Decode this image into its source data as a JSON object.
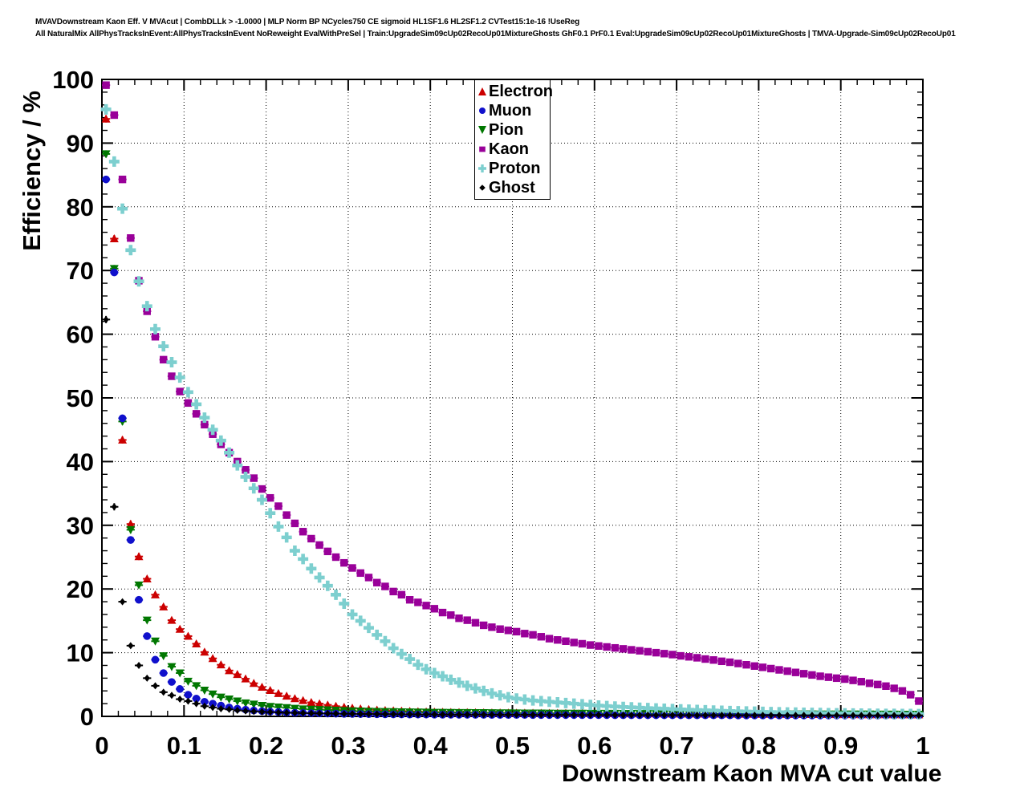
{
  "header": {
    "line1": "MVAVDownstream Kaon Eff. V MVAcut | CombDLLk > -1.0000 | MLP Norm BP NCycles750 CE sigmoid HL1SF1.6 HL2SF1.2 CVTest15:1e-16 !UseReg",
    "line2": "All NaturalMix AllPhysTracksInEvent:AllPhysTracksInEvent NoReweight EvalWithPreSel | Train:UpgradeSim09cUp02RecoUp01MixtureGhosts GhF0.1 PrF0.1 Eval:UpgradeSim09cUp02RecoUp01MixtureGhosts | TMVA-Upgrade-Sim09cUp02RecoUp01"
  },
  "axes": {
    "y_label": "Efficiency / %",
    "x_label": "Downstream Kaon MVA cut value",
    "y_ticks": [
      "0",
      "10",
      "20",
      "30",
      "40",
      "50",
      "60",
      "70",
      "80",
      "90",
      "100"
    ],
    "x_ticks": [
      "0",
      "0.1",
      "0.2",
      "0.3",
      "0.4",
      "0.5",
      "0.6",
      "0.7",
      "0.8",
      "0.9",
      "1"
    ]
  },
  "chart_data": {
    "type": "scatter",
    "title": "",
    "xlabel": "Downstream Kaon MVA cut value",
    "ylabel": "Efficiency / %",
    "xlim": [
      0,
      1
    ],
    "ylim": [
      0,
      100
    ],
    "grid": true,
    "legend_position": "top-right",
    "x_step": 0.01,
    "x_start": 0.005,
    "series": [
      {
        "name": "Electron",
        "marker": "triangle-up",
        "color": "#cc0000",
        "values": [
          93.8,
          75.0,
          43.4,
          30.2,
          25.1,
          21.6,
          19.1,
          17.2,
          15.1,
          13.7,
          12.6,
          11.4,
          10.1,
          9.1,
          8.1,
          7.2,
          6.6,
          5.9,
          5.2,
          4.6,
          4.1,
          3.6,
          3.2,
          2.8,
          2.5,
          2.2,
          2.0,
          1.8,
          1.6,
          1.45,
          1.3,
          1.2,
          1.1,
          1.0,
          0.95,
          0.9,
          0.85,
          0.8,
          0.75,
          0.72,
          0.7,
          0.67,
          0.65,
          0.63,
          0.61,
          0.6,
          0.58,
          0.57,
          0.56,
          0.55,
          0.54,
          0.53,
          0.52,
          0.51,
          0.5,
          0.5,
          0.49,
          0.48,
          0.47,
          0.46,
          0.45,
          0.45,
          0.44,
          0.43,
          0.43,
          0.42,
          0.42,
          0.41,
          0.41,
          0.4,
          0.4,
          0.39,
          0.39,
          0.38,
          0.38,
          0.37,
          0.37,
          0.36,
          0.36,
          0.35,
          0.35,
          0.34,
          0.34,
          0.33,
          0.33,
          0.32,
          0.32,
          0.31,
          0.31,
          0.3,
          0.3,
          0.3,
          0.29,
          0.29,
          0.28,
          0.28,
          0.28,
          0.27,
          0.27,
          0.27
        ]
      },
      {
        "name": "Muon",
        "marker": "circle",
        "color": "#1010cc",
        "values": [
          84.3,
          69.7,
          46.8,
          27.7,
          18.3,
          12.6,
          8.9,
          6.8,
          5.4,
          4.3,
          3.4,
          2.8,
          2.3,
          2.0,
          1.7,
          1.4,
          1.2,
          1.05,
          0.92,
          0.82,
          0.74,
          0.68,
          0.62,
          0.57,
          0.53,
          0.5,
          0.47,
          0.44,
          0.42,
          0.4,
          0.38,
          0.36,
          0.35,
          0.33,
          0.32,
          0.31,
          0.3,
          0.29,
          0.28,
          0.28,
          0.27,
          0.26,
          0.26,
          0.25,
          0.25,
          0.24,
          0.24,
          0.23,
          0.23,
          0.22,
          0.22,
          0.22,
          0.21,
          0.21,
          0.21,
          0.2,
          0.2,
          0.2,
          0.19,
          0.19,
          0.19,
          0.19,
          0.18,
          0.18,
          0.18,
          0.18,
          0.17,
          0.17,
          0.17,
          0.17,
          0.17,
          0.16,
          0.16,
          0.16,
          0.16,
          0.16,
          0.16,
          0.15,
          0.15,
          0.15,
          0.15,
          0.15,
          0.15,
          0.15,
          0.14,
          0.14,
          0.14,
          0.14,
          0.14,
          0.14,
          0.14,
          0.14,
          0.13,
          0.13,
          0.13,
          0.13,
          0.13,
          0.13,
          0.13,
          0.13
        ]
      },
      {
        "name": "Pion",
        "marker": "triangle-down",
        "color": "#007700",
        "values": [
          88.3,
          70.3,
          46.3,
          29.3,
          20.6,
          15.1,
          11.8,
          9.5,
          7.8,
          6.8,
          5.5,
          4.8,
          4.1,
          3.5,
          3.0,
          2.7,
          2.4,
          2.1,
          1.9,
          1.7,
          1.55,
          1.45,
          1.35,
          1.25,
          1.15,
          1.1,
          1.05,
          1.0,
          0.95,
          0.9,
          0.85,
          0.82,
          0.79,
          0.76,
          0.74,
          0.72,
          0.7,
          0.68,
          0.66,
          0.64,
          0.62,
          0.61,
          0.6,
          0.59,
          0.58,
          0.57,
          0.56,
          0.55,
          0.54,
          0.53,
          0.52,
          0.51,
          0.5,
          0.5,
          0.49,
          0.48,
          0.48,
          0.47,
          0.47,
          0.46,
          0.46,
          0.45,
          0.45,
          0.44,
          0.44,
          0.43,
          0.43,
          0.42,
          0.42,
          0.41,
          0.41,
          0.41,
          0.4,
          0.4,
          0.4,
          0.39,
          0.39,
          0.39,
          0.38,
          0.38,
          0.38,
          0.37,
          0.37,
          0.37,
          0.36,
          0.36,
          0.36,
          0.35,
          0.35,
          0.35,
          0.35,
          0.34,
          0.34,
          0.34,
          0.33,
          0.33,
          0.33,
          0.32,
          0.32,
          0.32
        ]
      },
      {
        "name": "Kaon",
        "marker": "square",
        "color": "#990099",
        "values": [
          99.1,
          94.4,
          84.3,
          75.1,
          68.4,
          63.6,
          59.6,
          56.0,
          53.4,
          51.0,
          49.2,
          47.5,
          45.8,
          44.3,
          42.7,
          41.4,
          40.0,
          38.7,
          37.4,
          35.7,
          34.3,
          33.0,
          31.6,
          30.3,
          29.0,
          27.9,
          26.9,
          25.9,
          25.0,
          24.1,
          23.3,
          22.5,
          21.8,
          21.0,
          20.4,
          19.6,
          19.1,
          18.3,
          17.9,
          17.4,
          16.9,
          16.3,
          15.9,
          15.4,
          15.1,
          14.7,
          14.3,
          14.0,
          13.7,
          13.5,
          13.3,
          13.0,
          12.8,
          12.5,
          12.2,
          12.0,
          11.8,
          11.6,
          11.4,
          11.2,
          11.05,
          10.9,
          10.75,
          10.6,
          10.45,
          10.3,
          10.15,
          10.0,
          9.85,
          9.7,
          9.5,
          9.35,
          9.2,
          9.0,
          8.85,
          8.65,
          8.5,
          8.3,
          8.1,
          7.9,
          7.7,
          7.5,
          7.3,
          7.1,
          6.9,
          6.7,
          6.5,
          6.3,
          6.15,
          6.0,
          5.85,
          5.65,
          5.45,
          5.2,
          5.0,
          4.75,
          4.4,
          4.0,
          3.4,
          2.4
        ]
      },
      {
        "name": "Proton",
        "marker": "plus",
        "color": "#7dcfcf",
        "values": [
          95.3,
          87.1,
          79.7,
          73.2,
          68.3,
          64.4,
          60.8,
          58.1,
          55.6,
          53.2,
          50.9,
          49.0,
          46.9,
          45.0,
          43.3,
          41.4,
          39.4,
          37.6,
          35.8,
          34.0,
          31.9,
          29.8,
          28.1,
          26.0,
          24.7,
          23.2,
          21.8,
          20.5,
          19.1,
          17.7,
          16.0,
          15.0,
          13.9,
          12.8,
          11.8,
          10.7,
          9.8,
          9.0,
          8.1,
          7.4,
          6.8,
          6.3,
          5.75,
          5.3,
          4.8,
          4.4,
          4.0,
          3.6,
          3.3,
          3.0,
          2.8,
          2.65,
          2.5,
          2.4,
          2.3,
          2.2,
          2.1,
          2.0,
          1.9,
          1.8,
          1.7,
          1.62,
          1.55,
          1.48,
          1.42,
          1.36,
          1.3,
          1.25,
          1.2,
          1.15,
          1.1,
          1.05,
          1.0,
          0.96,
          0.92,
          0.88,
          0.84,
          0.8,
          0.77,
          0.74,
          0.71,
          0.68,
          0.65,
          0.62,
          0.6,
          0.57,
          0.55,
          0.53,
          0.51,
          0.49,
          0.47,
          0.45,
          0.44,
          0.42,
          0.41,
          0.4,
          0.39,
          0.38,
          0.37,
          0.36
        ]
      },
      {
        "name": "Ghost",
        "marker": "diamond",
        "color": "#000000",
        "values": [
          62.3,
          32.9,
          18.0,
          11.1,
          8.0,
          6.0,
          4.8,
          3.8,
          3.3,
          2.7,
          2.4,
          2.0,
          1.6,
          1.4,
          1.2,
          1.1,
          0.95,
          0.85,
          0.78,
          0.72,
          0.67,
          0.62,
          0.58,
          0.55,
          0.52,
          0.49,
          0.47,
          0.45,
          0.43,
          0.41,
          0.4,
          0.38,
          0.37,
          0.36,
          0.35,
          0.34,
          0.33,
          0.32,
          0.31,
          0.31,
          0.3,
          0.29,
          0.29,
          0.28,
          0.28,
          0.27,
          0.27,
          0.26,
          0.26,
          0.25,
          0.25,
          0.25,
          0.24,
          0.24,
          0.24,
          0.23,
          0.23,
          0.23,
          0.22,
          0.22,
          0.22,
          0.22,
          0.21,
          0.21,
          0.21,
          0.21,
          0.2,
          0.2,
          0.2,
          0.2,
          0.2,
          0.19,
          0.19,
          0.19,
          0.19,
          0.19,
          0.19,
          0.18,
          0.18,
          0.18,
          0.18,
          0.18,
          0.18,
          0.18,
          0.17,
          0.17,
          0.17,
          0.17,
          0.17,
          0.17,
          0.17,
          0.16,
          0.16,
          0.16,
          0.16,
          0.16,
          0.16,
          0.16,
          0.16,
          0.16
        ]
      }
    ]
  },
  "colors": {
    "frame": "#000000",
    "grid": "#000000",
    "background": "#ffffff"
  }
}
